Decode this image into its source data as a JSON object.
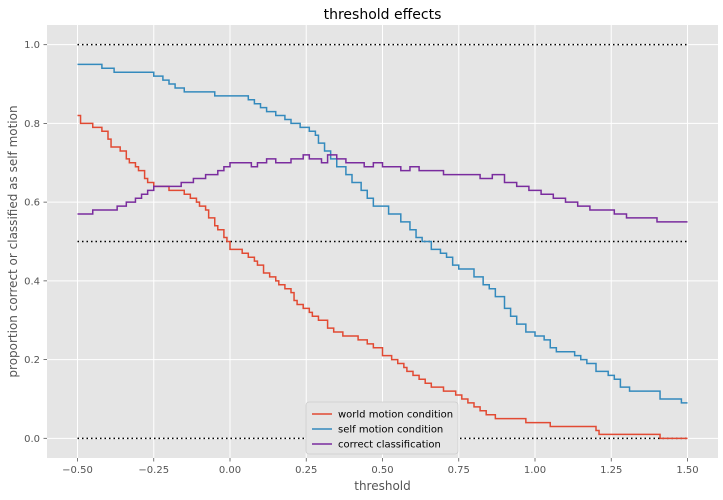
{
  "chart_data": {
    "type": "line",
    "title": "threshold effects",
    "xlabel": "threshold",
    "ylabel": "proportion correct or classified as self motion",
    "xlim": [
      -0.6,
      1.6
    ],
    "ylim": [
      -0.05,
      1.05
    ],
    "xticks": [
      -0.5,
      -0.25,
      0.0,
      0.25,
      0.5,
      0.75,
      1.0,
      1.25,
      1.5
    ],
    "xtick_labels": [
      "−0.50",
      "−0.25",
      "0.00",
      "0.25",
      "0.50",
      "0.75",
      "1.00",
      "1.25",
      "1.50"
    ],
    "yticks": [
      0.0,
      0.2,
      0.4,
      0.6,
      0.8,
      1.0
    ],
    "ytick_labels": [
      "0.0",
      "0.2",
      "0.4",
      "0.6",
      "0.8",
      "1.0"
    ],
    "grid": true,
    "legend_position": "bottom-center",
    "style": {
      "background": "#e5e5e5",
      "grid_color": "#ffffff",
      "reference_line_color": "#000000"
    },
    "reference_lines": [
      0.0,
      0.5,
      1.0
    ],
    "series": [
      {
        "name": "world motion condition",
        "color": "#e24a33",
        "x": [
          -0.5,
          -0.49,
          -0.48,
          -0.45,
          -0.42,
          -0.4,
          -0.39,
          -0.38,
          -0.36,
          -0.34,
          -0.33,
          -0.31,
          -0.3,
          -0.28,
          -0.27,
          -0.25,
          -0.24,
          -0.23,
          -0.22,
          -0.2,
          -0.17,
          -0.15,
          -0.13,
          -0.11,
          -0.1,
          -0.08,
          -0.07,
          -0.05,
          -0.04,
          -0.02,
          -0.01,
          0.0,
          0.04,
          0.06,
          0.08,
          0.09,
          0.11,
          0.13,
          0.15,
          0.16,
          0.18,
          0.2,
          0.21,
          0.22,
          0.24,
          0.26,
          0.27,
          0.29,
          0.32,
          0.34,
          0.37,
          0.42,
          0.45,
          0.47,
          0.5,
          0.53,
          0.55,
          0.57,
          0.58,
          0.6,
          0.62,
          0.64,
          0.66,
          0.7,
          0.74,
          0.76,
          0.78,
          0.8,
          0.82,
          0.84,
          0.87,
          0.92,
          0.97,
          1.03,
          1.05,
          1.17,
          1.2,
          1.21,
          1.4,
          1.41,
          1.45,
          1.5
        ],
        "values": [
          0.82,
          0.8,
          0.8,
          0.79,
          0.78,
          0.76,
          0.74,
          0.74,
          0.73,
          0.71,
          0.7,
          0.69,
          0.68,
          0.66,
          0.65,
          0.64,
          0.64,
          0.64,
          0.64,
          0.63,
          0.63,
          0.62,
          0.61,
          0.6,
          0.59,
          0.58,
          0.56,
          0.54,
          0.53,
          0.51,
          0.5,
          0.48,
          0.47,
          0.46,
          0.45,
          0.44,
          0.42,
          0.41,
          0.4,
          0.39,
          0.38,
          0.37,
          0.35,
          0.34,
          0.33,
          0.32,
          0.31,
          0.3,
          0.28,
          0.27,
          0.26,
          0.25,
          0.24,
          0.23,
          0.21,
          0.2,
          0.19,
          0.18,
          0.17,
          0.16,
          0.15,
          0.14,
          0.13,
          0.12,
          0.11,
          0.1,
          0.09,
          0.08,
          0.07,
          0.06,
          0.05,
          0.05,
          0.04,
          0.04,
          0.03,
          0.03,
          0.02,
          0.01,
          0.01,
          0.0,
          0.0,
          0.0
        ]
      },
      {
        "name": "self motion condition",
        "color": "#348abd",
        "x": [
          -0.5,
          -0.42,
          -0.38,
          -0.25,
          -0.22,
          -0.2,
          -0.18,
          -0.15,
          -0.13,
          -0.11,
          -0.05,
          0.0,
          0.06,
          0.08,
          0.1,
          0.12,
          0.15,
          0.18,
          0.2,
          0.23,
          0.26,
          0.28,
          0.29,
          0.31,
          0.33,
          0.35,
          0.38,
          0.4,
          0.43,
          0.45,
          0.47,
          0.5,
          0.52,
          0.56,
          0.59,
          0.61,
          0.63,
          0.66,
          0.69,
          0.71,
          0.73,
          0.75,
          0.8,
          0.83,
          0.85,
          0.87,
          0.9,
          0.92,
          0.94,
          0.97,
          1.0,
          1.03,
          1.05,
          1.07,
          1.13,
          1.15,
          1.17,
          1.2,
          1.22,
          1.24,
          1.26,
          1.28,
          1.31,
          1.35,
          1.41,
          1.48,
          1.5
        ],
        "values": [
          0.95,
          0.94,
          0.93,
          0.92,
          0.91,
          0.9,
          0.89,
          0.88,
          0.88,
          0.88,
          0.87,
          0.87,
          0.86,
          0.85,
          0.84,
          0.83,
          0.82,
          0.81,
          0.8,
          0.79,
          0.78,
          0.77,
          0.75,
          0.73,
          0.71,
          0.69,
          0.67,
          0.65,
          0.63,
          0.61,
          0.59,
          0.59,
          0.57,
          0.55,
          0.53,
          0.51,
          0.5,
          0.48,
          0.47,
          0.46,
          0.44,
          0.43,
          0.41,
          0.39,
          0.38,
          0.36,
          0.33,
          0.31,
          0.29,
          0.27,
          0.26,
          0.25,
          0.23,
          0.22,
          0.21,
          0.2,
          0.19,
          0.17,
          0.17,
          0.16,
          0.15,
          0.13,
          0.12,
          0.12,
          0.1,
          0.09,
          0.09
        ]
      },
      {
        "name": "correct classification",
        "color": "#7a2c9e",
        "x": [
          -0.5,
          -0.48,
          -0.45,
          -0.4,
          -0.37,
          -0.34,
          -0.31,
          -0.29,
          -0.27,
          -0.25,
          -0.23,
          -0.2,
          -0.18,
          -0.16,
          -0.14,
          -0.12,
          -0.1,
          -0.08,
          -0.06,
          -0.04,
          -0.02,
          0.0,
          0.03,
          0.05,
          0.07,
          0.09,
          0.12,
          0.15,
          0.18,
          0.2,
          0.22,
          0.24,
          0.26,
          0.28,
          0.3,
          0.32,
          0.35,
          0.38,
          0.41,
          0.44,
          0.47,
          0.5,
          0.53,
          0.56,
          0.59,
          0.62,
          0.66,
          0.7,
          0.74,
          0.78,
          0.82,
          0.86,
          0.9,
          0.94,
          0.98,
          1.02,
          1.06,
          1.1,
          1.14,
          1.18,
          1.22,
          1.26,
          1.3,
          1.35,
          1.4,
          1.45,
          1.5
        ],
        "values": [
          0.57,
          0.57,
          0.58,
          0.58,
          0.59,
          0.6,
          0.61,
          0.62,
          0.63,
          0.64,
          0.64,
          0.64,
          0.64,
          0.65,
          0.65,
          0.66,
          0.66,
          0.67,
          0.67,
          0.68,
          0.69,
          0.7,
          0.7,
          0.7,
          0.69,
          0.7,
          0.71,
          0.7,
          0.7,
          0.71,
          0.71,
          0.72,
          0.71,
          0.71,
          0.7,
          0.72,
          0.71,
          0.7,
          0.7,
          0.69,
          0.7,
          0.69,
          0.69,
          0.68,
          0.69,
          0.68,
          0.68,
          0.67,
          0.67,
          0.67,
          0.66,
          0.67,
          0.65,
          0.64,
          0.63,
          0.62,
          0.61,
          0.6,
          0.59,
          0.58,
          0.58,
          0.57,
          0.56,
          0.56,
          0.55,
          0.55,
          0.55
        ]
      }
    ]
  }
}
